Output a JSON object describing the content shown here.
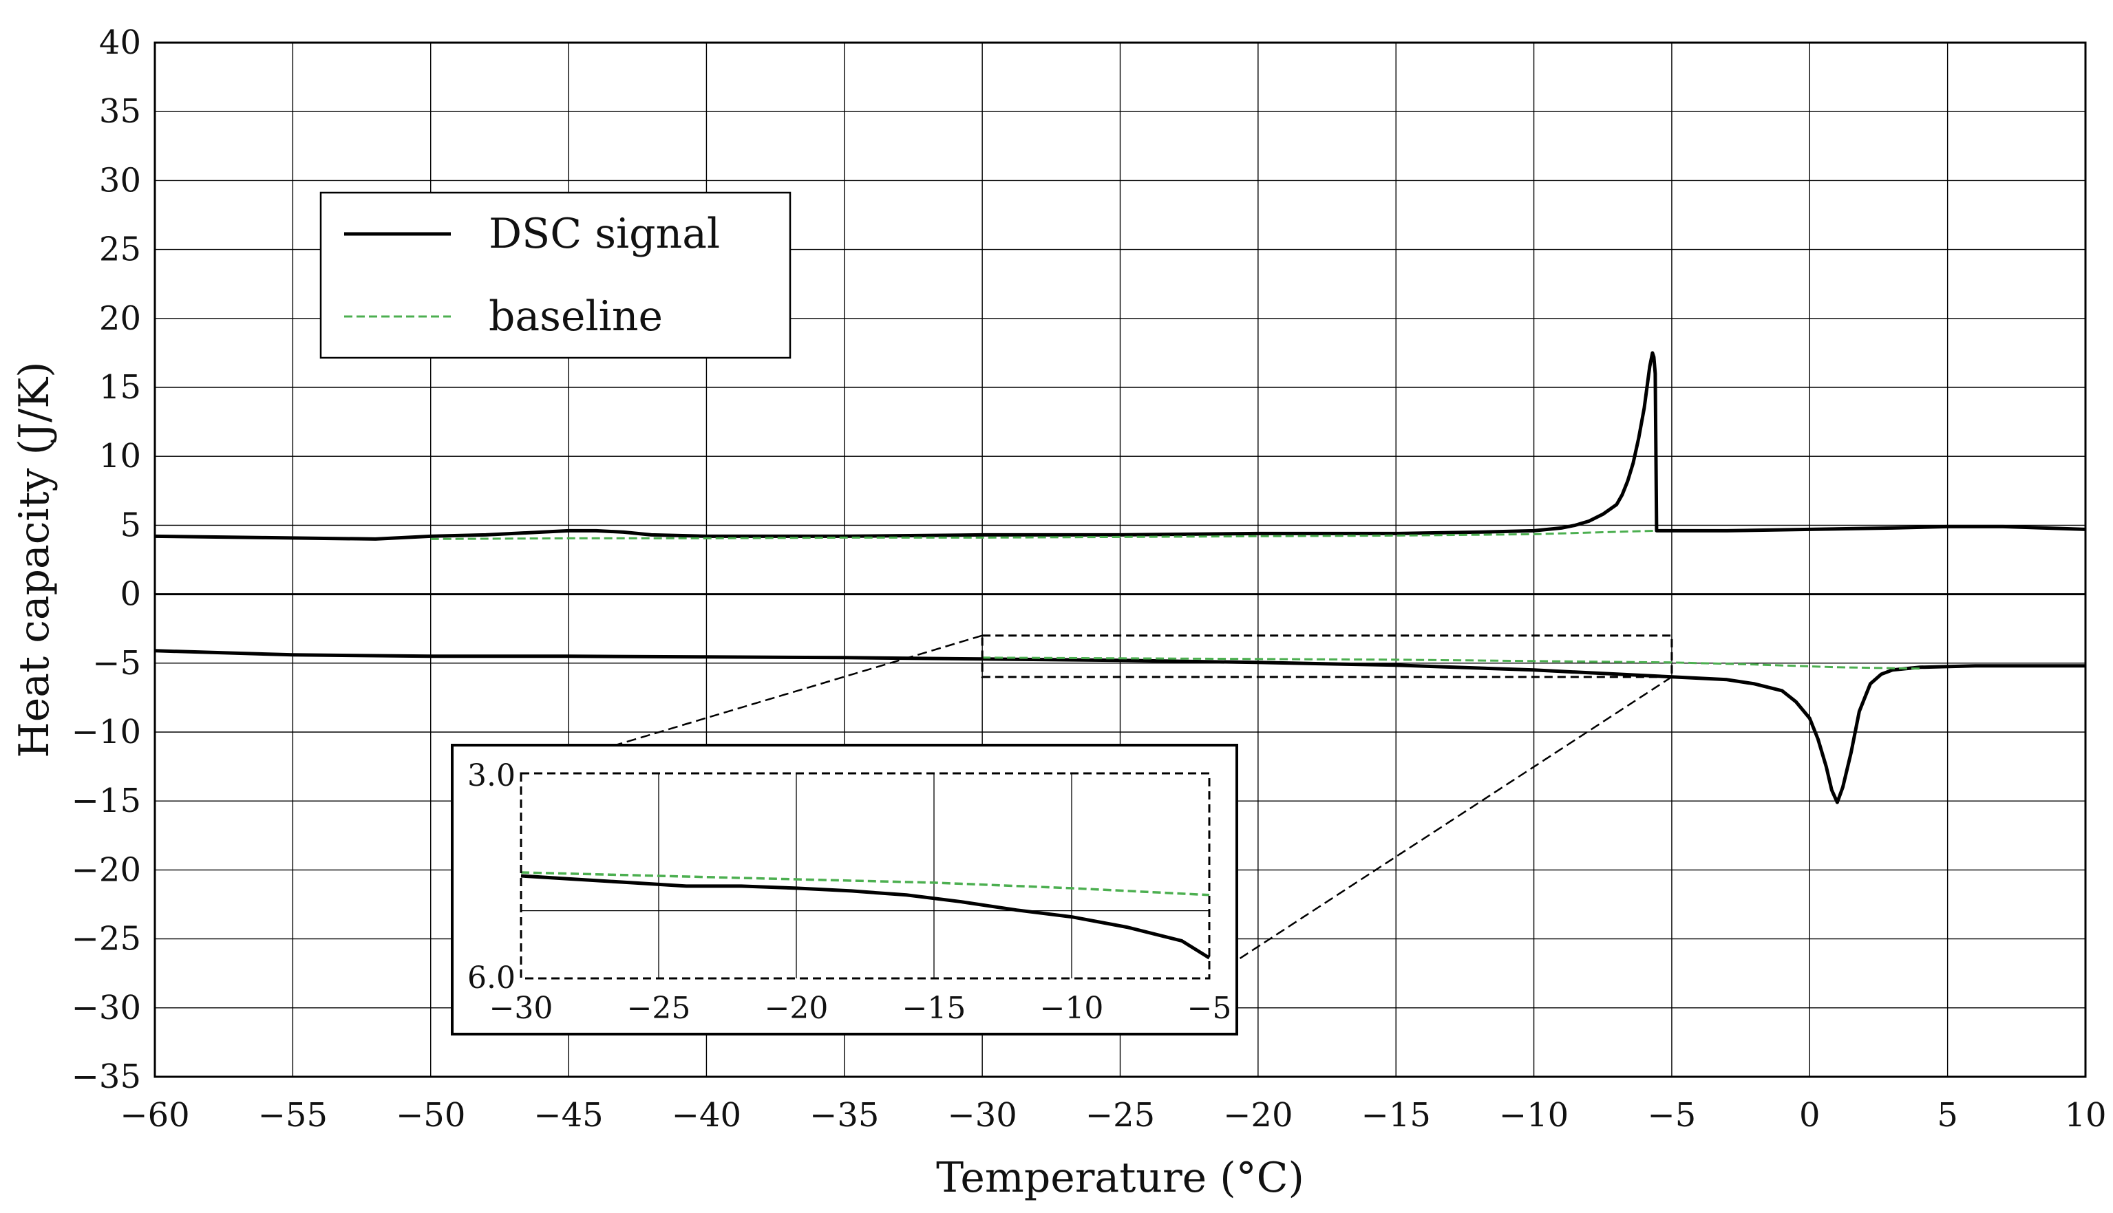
{
  "chart_data": {
    "type": "line",
    "title": "",
    "xlabel": "Temperature (°C)",
    "ylabel": "Heat capacity (J/K)",
    "xlim": [
      -60,
      10
    ],
    "ylim": [
      -35,
      40
    ],
    "xticks": [
      -60,
      -55,
      -50,
      -45,
      -40,
      -35,
      -30,
      -25,
      -20,
      -15,
      -10,
      -5,
      0,
      5,
      10
    ],
    "xtick_labels": [
      "−60",
      "−55",
      "−50",
      "−45",
      "−40",
      "−35",
      "−30",
      "−25",
      "−20",
      "−15",
      "−10",
      "−5",
      "0",
      "5",
      "10"
    ],
    "yticks": [
      40,
      35,
      30,
      25,
      20,
      15,
      10,
      5,
      0,
      -5,
      -10,
      -15,
      -20,
      -25,
      -30,
      -35
    ],
    "ytick_labels": [
      "40",
      "35",
      "30",
      "25",
      "20",
      "15",
      "10",
      "5",
      "0",
      "−5",
      "−10",
      "−15",
      "−20",
      "−25",
      "−30",
      "−35"
    ],
    "grid": true,
    "legend": {
      "position": "upper-left",
      "entries": [
        {
          "label": "DSC signal",
          "color": "#000000",
          "style": "solid"
        },
        {
          "label": "baseline",
          "color": "#4caf50",
          "style": "dashed"
        }
      ]
    },
    "series": [
      {
        "name": "DSC signal",
        "segment": "heating",
        "color": "#000000",
        "style": "solid",
        "x": [
          -60,
          -56,
          -52,
          -50,
          -48,
          -46,
          -45,
          -44,
          -43,
          -42,
          -40,
          -35,
          -30,
          -25,
          -20,
          -15,
          -12,
          -10,
          -9,
          -8.5,
          -8,
          -7.5,
          -7,
          -6.8,
          -6.6,
          -6.4,
          -6.2,
          -6.0,
          -5.9,
          -5.8,
          -5.7,
          -5.65,
          -5.6,
          -5.55,
          -5,
          -3,
          0,
          3,
          5,
          7,
          10
        ],
        "y": [
          4.2,
          4.1,
          4.0,
          4.2,
          4.3,
          4.5,
          4.6,
          4.6,
          4.5,
          4.3,
          4.2,
          4.2,
          4.3,
          4.3,
          4.4,
          4.4,
          4.5,
          4.6,
          4.8,
          5.0,
          5.3,
          5.8,
          6.5,
          7.2,
          8.2,
          9.5,
          11.3,
          13.5,
          15.0,
          16.5,
          17.5,
          17.2,
          16.0,
          4.6,
          4.6,
          4.6,
          4.7,
          4.8,
          4.9,
          4.9,
          4.7
        ]
      },
      {
        "name": "baseline",
        "segment": "heating",
        "color": "#4caf50",
        "style": "dashed",
        "x": [
          -50,
          -45,
          -40,
          -35,
          -30,
          -25,
          -20,
          -15,
          -10,
          -5.6
        ],
        "y": [
          4.0,
          4.05,
          4.05,
          4.1,
          4.1,
          4.15,
          4.2,
          4.25,
          4.35,
          4.6
        ]
      },
      {
        "name": "DSC signal",
        "segment": "cooling",
        "color": "#000000",
        "style": "solid",
        "x": [
          -60,
          -55,
          -50,
          -45,
          -40,
          -35,
          -30,
          -25,
          -20,
          -15,
          -10,
          -7,
          -5,
          -3,
          -2,
          -1,
          -0.5,
          0,
          0.3,
          0.6,
          0.8,
          1.0,
          1.2,
          1.5,
          1.8,
          2.2,
          2.6,
          3.0,
          4,
          6,
          10
        ],
        "y": [
          -4.1,
          -4.4,
          -4.5,
          -4.5,
          -4.55,
          -4.6,
          -4.7,
          -4.8,
          -4.95,
          -5.15,
          -5.5,
          -5.8,
          -6.0,
          -6.2,
          -6.5,
          -7.0,
          -7.8,
          -9.0,
          -10.5,
          -12.5,
          -14.2,
          -15.1,
          -14.0,
          -11.5,
          -8.5,
          -6.5,
          -5.8,
          -5.5,
          -5.3,
          -5.2,
          -5.2
        ]
      },
      {
        "name": "baseline",
        "segment": "cooling",
        "color": "#4caf50",
        "style": "dashed",
        "x": [
          -30,
          -25,
          -20,
          -15,
          -10,
          -5,
          -2,
          1,
          4
        ],
        "y": [
          -4.6,
          -4.65,
          -4.7,
          -4.75,
          -4.85,
          -4.95,
          -5.1,
          -5.3,
          -5.4
        ]
      }
    ],
    "zoom_box": {
      "x": [
        -30,
        -5
      ],
      "y": [
        -3.0,
        -6.0
      ]
    },
    "inset": {
      "xlim": [
        -30,
        -5
      ],
      "ylim_top": 3.0,
      "ylim_bottom": 6.0,
      "xticks": [
        -30,
        -25,
        -20,
        -15,
        -10,
        -5
      ],
      "xtick_labels": [
        "−30",
        "−25",
        "−20",
        "−15",
        "−10",
        "−5"
      ],
      "ytick_top_label": "3.0",
      "ytick_bottom_label": "6.0",
      "series": [
        {
          "name": "DSC signal",
          "color": "#000000",
          "x": [
            -30,
            -28,
            -26,
            -24,
            -22,
            -20,
            -18,
            -16,
            -14,
            -12,
            -10,
            -8,
            -6,
            -5
          ],
          "y": [
            4.5,
            4.55,
            4.6,
            4.65,
            4.65,
            4.68,
            4.72,
            4.78,
            4.88,
            5.0,
            5.1,
            5.25,
            5.45,
            5.7
          ]
        },
        {
          "name": "baseline",
          "color": "#4caf50",
          "x": [
            -30,
            -25,
            -20,
            -15,
            -10,
            -5
          ],
          "y": [
            4.45,
            4.5,
            4.55,
            4.6,
            4.68,
            4.78
          ]
        }
      ]
    }
  }
}
